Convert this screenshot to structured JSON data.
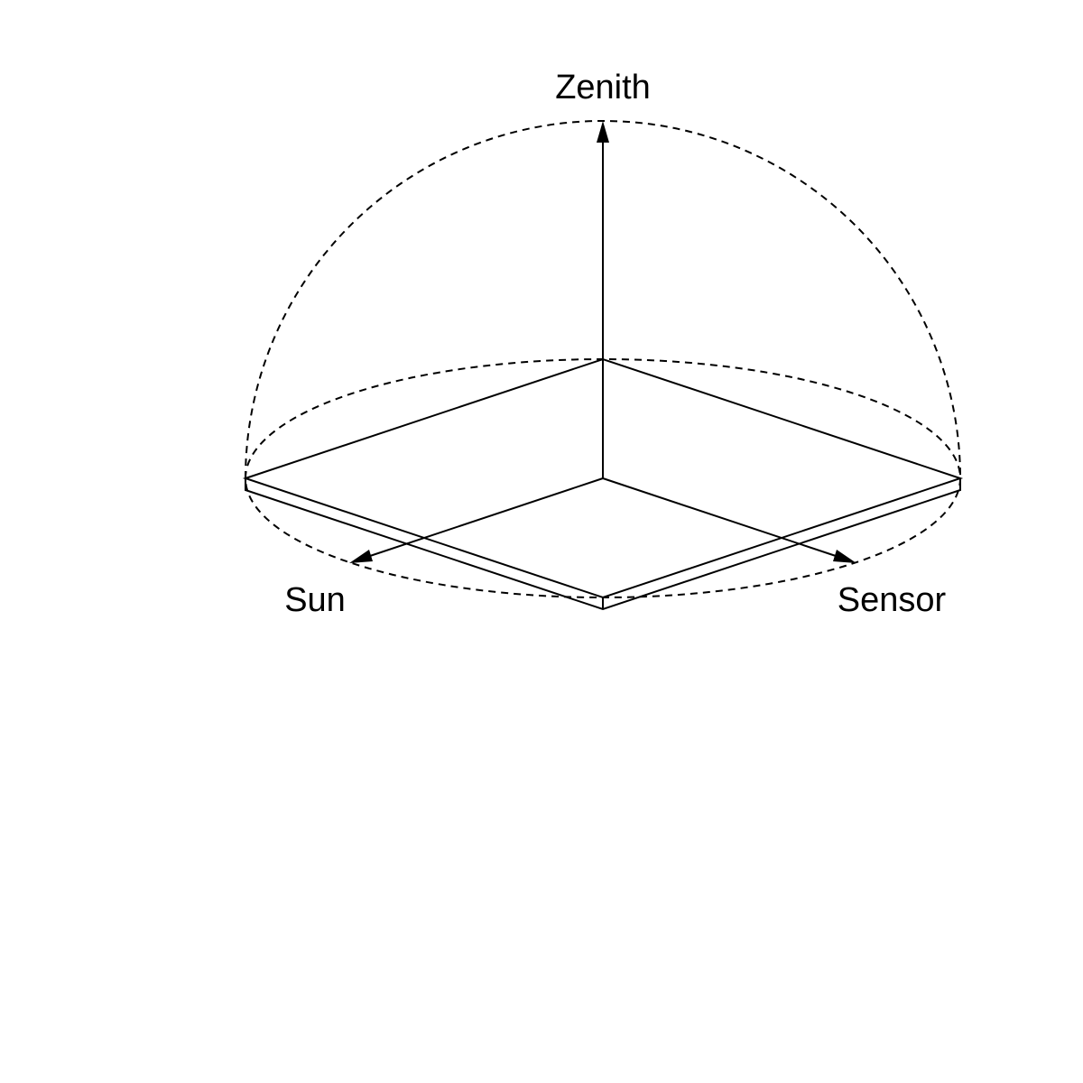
{
  "labels": {
    "zenith": "Zenith",
    "sun": "Sun",
    "sensor": "Sensor"
  },
  "colors": {
    "stroke": "#000000",
    "background": "#ffffff"
  }
}
